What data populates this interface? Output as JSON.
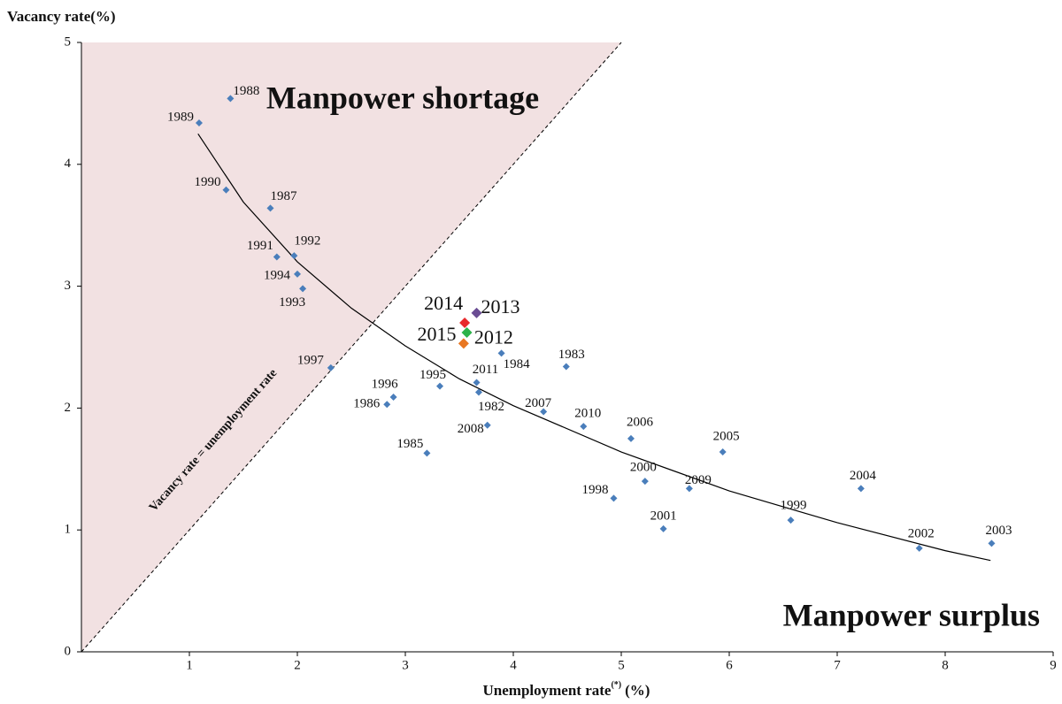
{
  "chart_data": {
    "type": "scatter",
    "ylabel": "Vacancy rate(%)",
    "xlabel": "Unemployment rate",
    "xlabel_note": "(*)",
    "xlabel_unit": "(%)",
    "region_label_shortage": "Manpower shortage",
    "region_label_surplus": "Manpower surplus",
    "diagonal_label": "Vacancy rate = unemployment rate",
    "xlim": [
      0,
      9
    ],
    "xticks": [
      1,
      2,
      3,
      4,
      5,
      6,
      7,
      8,
      9
    ],
    "ylim": [
      0,
      5
    ],
    "yticks": [
      0,
      1,
      2,
      3,
      4,
      5
    ],
    "shortage_color": "#f2e1e2",
    "shortage_text_color": "#e8292c",
    "surplus_text_color": "#999999",
    "labels": [
      "1988",
      "1989",
      "1990",
      "1987",
      "1991",
      "1992",
      "1994",
      "1993",
      "1997",
      "1996",
      "1986",
      "1985",
      "1995",
      "2011",
      "1982",
      "2008",
      "1984",
      "1983",
      "2007",
      "2010",
      "2006",
      "2005",
      "2000",
      "2009",
      "1998",
      "2001",
      "1999",
      "2004",
      "2002",
      "2003",
      "2014",
      "2013",
      "2015",
      "2012"
    ],
    "x": [
      1.38,
      1.09,
      1.34,
      1.75,
      1.81,
      1.97,
      2.0,
      2.05,
      2.31,
      2.89,
      2.83,
      3.2,
      3.32,
      3.66,
      3.68,
      3.76,
      3.89,
      4.49,
      4.28,
      4.65,
      5.09,
      5.94,
      5.22,
      5.63,
      4.93,
      5.39,
      6.57,
      7.22,
      7.76,
      8.43,
      3.55,
      3.66,
      3.57,
      3.54
    ],
    "values": [
      4.54,
      4.34,
      3.79,
      3.64,
      3.24,
      3.25,
      3.1,
      2.98,
      2.33,
      2.09,
      2.03,
      1.63,
      2.18,
      2.21,
      2.13,
      1.86,
      2.45,
      2.34,
      1.97,
      1.85,
      1.75,
      1.64,
      1.4,
      1.34,
      1.26,
      1.01,
      1.08,
      1.34,
      0.85,
      0.89,
      2.7,
      2.78,
      2.62,
      2.53
    ],
    "colors": [
      "#4a7ebb",
      "#4a7ebb",
      "#4a7ebb",
      "#4a7ebb",
      "#4a7ebb",
      "#4a7ebb",
      "#4a7ebb",
      "#4a7ebb",
      "#4a7ebb",
      "#4a7ebb",
      "#4a7ebb",
      "#4a7ebb",
      "#4a7ebb",
      "#4a7ebb",
      "#4a7ebb",
      "#4a7ebb",
      "#4a7ebb",
      "#4a7ebb",
      "#4a7ebb",
      "#4a7ebb",
      "#4a7ebb",
      "#4a7ebb",
      "#4a7ebb",
      "#4a7ebb",
      "#4a7ebb",
      "#4a7ebb",
      "#4a7ebb",
      "#4a7ebb",
      "#4a7ebb",
      "#4a7ebb",
      "#e8292c",
      "#6a4c93",
      "#2db34a",
      "#e87722"
    ],
    "trendline": {
      "x": [
        1.08,
        1.5,
        2,
        2.5,
        3,
        3.5,
        4,
        5,
        6,
        7,
        8,
        8.42
      ],
      "values": [
        4.25,
        3.69,
        3.2,
        2.82,
        2.51,
        2.24,
        2.02,
        1.64,
        1.32,
        1.06,
        0.83,
        0.75
      ]
    }
  }
}
